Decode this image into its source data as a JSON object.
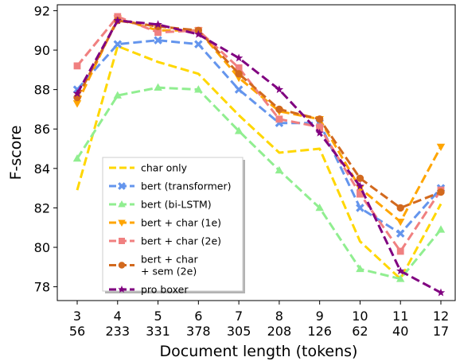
{
  "chart_data": {
    "type": "line",
    "x": [
      3,
      4,
      5,
      6,
      7,
      8,
      9,
      10,
      11,
      12
    ],
    "x_tick_labels": [
      "3",
      "4",
      "5",
      "6",
      "7",
      "8",
      "9",
      "10",
      "11",
      "12"
    ],
    "x_tick_sublabels": [
      "56",
      "233",
      "331",
      "378",
      "305",
      "208",
      "126",
      "62",
      "40",
      "17"
    ],
    "xlabel": "Document length (tokens)",
    "ylabel": "F-score",
    "ylim": [
      77.3,
      92.3
    ],
    "y_ticks": [
      78,
      80,
      82,
      84,
      86,
      88,
      90,
      92
    ],
    "y_tick_labels": [
      "78",
      "80",
      "82",
      "84",
      "86",
      "88",
      "90",
      "92"
    ],
    "grid": false,
    "legend_position": "lower-left",
    "series": [
      {
        "name": "char only",
        "color": "#ffd700",
        "marker": "none",
        "values": [
          82.9,
          90.2,
          89.4,
          88.8,
          86.7,
          84.8,
          85.0,
          80.3,
          78.4,
          82.2
        ]
      },
      {
        "name": "bert (transformer)",
        "color": "#6495ed",
        "marker": "x",
        "values": [
          88.0,
          90.3,
          90.5,
          90.3,
          88.0,
          86.3,
          86.3,
          82.0,
          80.7,
          83.0
        ]
      },
      {
        "name": "bert (bi-LSTM)",
        "color": "#90ee90",
        "marker": "triangle-up",
        "values": [
          84.5,
          87.7,
          88.1,
          88.0,
          85.9,
          83.9,
          82.0,
          78.9,
          78.4,
          80.9
        ]
      },
      {
        "name": "bert + char (1e)",
        "color": "#ffa500",
        "marker": "triangle-down",
        "values": [
          87.3,
          91.6,
          91.0,
          91.0,
          88.6,
          86.9,
          86.5,
          83.0,
          81.3,
          85.1
        ]
      },
      {
        "name": "bert + char (2e)",
        "color": "#f08080",
        "marker": "square",
        "values": [
          89.2,
          91.7,
          90.9,
          91.0,
          89.1,
          86.5,
          86.1,
          82.7,
          79.8,
          82.9
        ]
      },
      {
        "name": "bert + char\n+ sem (2e)",
        "color": "#d2691e",
        "marker": "circle",
        "values": [
          87.6,
          91.5,
          91.2,
          91.0,
          88.8,
          87.0,
          86.5,
          83.5,
          82.0,
          82.8
        ]
      },
      {
        "name": "pro boxer",
        "color": "#800080",
        "marker": "star",
        "values": [
          87.8,
          91.5,
          91.3,
          90.8,
          89.6,
          88.0,
          85.8,
          83.1,
          78.8,
          77.7
        ]
      }
    ]
  }
}
